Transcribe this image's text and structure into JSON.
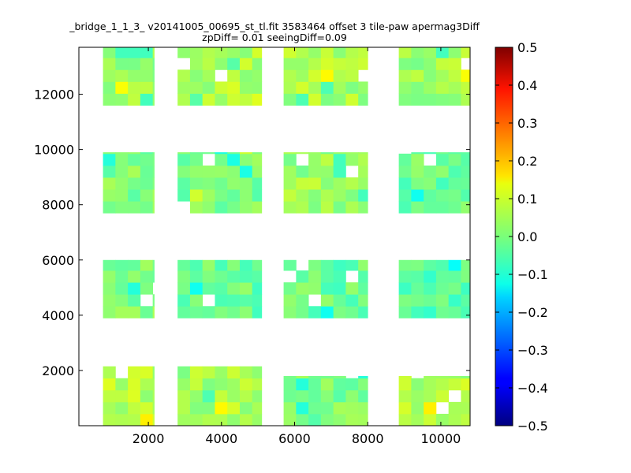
{
  "chart_data": {
    "type": "heatmap",
    "title_line1": "_bridge_1_1_3_ v20141005_00695_st_tl.fit 3583464 offset 3 tile-paw apermag3Diff",
    "title_line2": "zpDiff= 0.01 seeingDiff=0.09",
    "xlabel": "",
    "ylabel": "",
    "xlim": [
      100,
      10800
    ],
    "ylim": [
      0,
      13700
    ],
    "x_ticks": [
      2000,
      4000,
      6000,
      8000,
      10000
    ],
    "y_ticks": [
      2000,
      4000,
      6000,
      8000,
      10000,
      12000
    ],
    "x_tick_labels": [
      "2000",
      "4000",
      "6000",
      "8000",
      "10000"
    ],
    "y_tick_labels": [
      "2000",
      "4000",
      "6000",
      "8000",
      "10000",
      "12000"
    ],
    "colorbar": {
      "colormap": "jet",
      "range": [
        -0.5,
        0.5
      ],
      "ticks": [
        0.5,
        0.4,
        0.3,
        0.2,
        0.1,
        0.0,
        -0.1,
        -0.2,
        -0.3,
        -0.4,
        -0.5
      ],
      "tick_labels": [
        "0.5",
        "0.4",
        "0.3",
        "0.2",
        "0.1",
        "0.0",
        "−0.1",
        "−0.2",
        "−0.3",
        "−0.4",
        "−0.5"
      ]
    },
    "cell_size": [
      340,
      430
    ],
    "tile_regions": [
      {
        "x": [
          760,
          2160
        ],
        "y": [
          0,
          2150
        ]
      },
      {
        "x": [
          2800,
          5100
        ],
        "y": [
          0,
          2150
        ]
      },
      {
        "x": [
          5700,
          8000
        ],
        "y": [
          0,
          1800
        ]
      },
      {
        "x": [
          8850,
          10800
        ],
        "y": [
          0,
          1800
        ]
      },
      {
        "x": [
          760,
          2160
        ],
        "y": [
          3900,
          6000
        ]
      },
      {
        "x": [
          2800,
          5100
        ],
        "y": [
          3900,
          6000
        ]
      },
      {
        "x": [
          5700,
          8000
        ],
        "y": [
          3900,
          6000
        ]
      },
      {
        "x": [
          8850,
          10800
        ],
        "y": [
          3900,
          6000
        ]
      },
      {
        "x": [
          760,
          2160
        ],
        "y": [
          7700,
          9900
        ]
      },
      {
        "x": [
          2800,
          5100
        ],
        "y": [
          7700,
          9900
        ]
      },
      {
        "x": [
          5700,
          8000
        ],
        "y": [
          7700,
          9900
        ]
      },
      {
        "x": [
          8850,
          10800
        ],
        "y": [
          7700,
          9900
        ]
      },
      {
        "x": [
          760,
          2160
        ],
        "y": [
          11600,
          13700
        ]
      },
      {
        "x": [
          2800,
          5100
        ],
        "y": [
          11600,
          13700
        ]
      },
      {
        "x": [
          5700,
          8000
        ],
        "y": [
          11600,
          13700
        ]
      },
      {
        "x": [
          8850,
          10800
        ],
        "y": [
          11600,
          13700
        ]
      }
    ],
    "region_mean_values": [
      0.05,
      0.04,
      0.0,
      0.05,
      0.0,
      -0.02,
      -0.02,
      -0.03,
      0.0,
      -0.01,
      0.03,
      -0.02,
      0.03,
      0.05,
      0.04,
      0.03
    ]
  }
}
